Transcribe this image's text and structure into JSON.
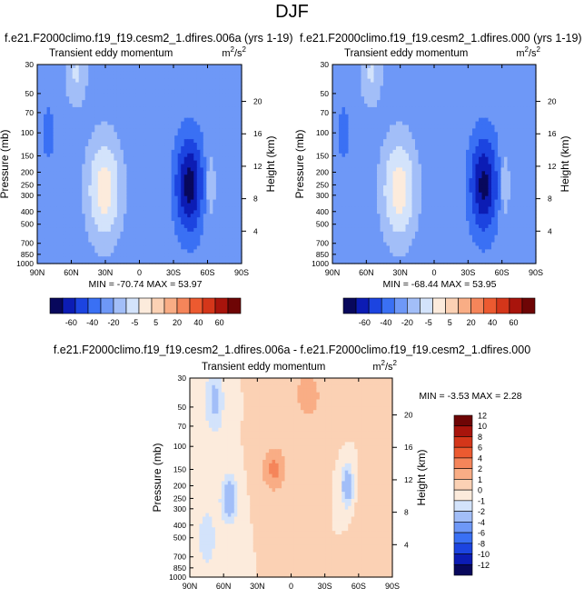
{
  "figure_title": "DJF",
  "chart_data": [
    {
      "type": "heatmap",
      "title": "f.e21.F2000climo.f19_f19.cesm2_1.dfires.006a (yrs 1-19)",
      "subtitle": "Transient eddy momentum",
      "units": "m²/s²",
      "ylabel": "Pressure (mb)",
      "right_ylabel": "Height (km)",
      "xlim": [
        90,
        -90
      ],
      "x_ticks": [
        "90N",
        "60N",
        "30N",
        "0",
        "30S",
        "60S",
        "90S"
      ],
      "y_ticks": [
        30,
        50,
        70,
        100,
        150,
        200,
        250,
        300,
        400,
        500,
        700,
        850,
        1000
      ],
      "right_ticks": [
        20,
        16,
        12,
        8,
        4
      ],
      "min_label": "MIN = -70.74",
      "max_label": "MAX =  53.97",
      "min": -70.74,
      "max": 53.97,
      "levels": [
        -60,
        -40,
        -20,
        -5,
        5,
        20,
        40,
        60
      ],
      "level_labels": [
        "-60",
        "-40",
        "-20",
        "-5",
        "5",
        "20",
        "40",
        "60"
      ],
      "colors": [
        "#08085c",
        "#0c1cb4",
        "#1c44e0",
        "#3a70f4",
        "#6e98f7",
        "#a2bef8",
        "#d3e3fb",
        "#fcebdc",
        "#fbd1b4",
        "#f9ad85",
        "#f5855a",
        "#ec5a30",
        "#d4361a",
        "#a8140c",
        "#6e0505"
      ],
      "features": [
        {
          "kind": "max",
          "lat": 31,
          "p": 270,
          "amp": 53.97,
          "wlat": 9,
          "wz": 3.8
        },
        {
          "kind": "min",
          "lat": -44,
          "p": 250,
          "amp": -70.74,
          "wlat": 7.5,
          "wz": 3.6
        },
        {
          "kind": "max",
          "lat": 56,
          "p": 35,
          "amp": 22,
          "wlat": 6,
          "wz": 2.5
        },
        {
          "kind": "max",
          "lat": -62,
          "p": 250,
          "amp": 14,
          "wlat": 3.5,
          "wz": 3
        },
        {
          "kind": "min",
          "lat": 80,
          "p": 100,
          "amp": -6,
          "wlat": 8,
          "wz": 5
        }
      ]
    },
    {
      "type": "heatmap",
      "title": "f.e21.F2000climo.f19_f19.cesm2_1.dfires.000 (yrs 1-19)",
      "subtitle": "Transient eddy momentum",
      "units": "m²/s²",
      "ylabel": "Pressure (mb)",
      "right_ylabel": "Height (km)",
      "xlim": [
        90,
        -90
      ],
      "x_ticks": [
        "90N",
        "60N",
        "30N",
        "0",
        "30S",
        "60S",
        "90S"
      ],
      "y_ticks": [
        30,
        50,
        70,
        100,
        150,
        200,
        250,
        300,
        400,
        500,
        700,
        850,
        1000
      ],
      "right_ticks": [
        20,
        16,
        12,
        8,
        4
      ],
      "min_label": "MIN = -68.44",
      "max_label": "MAX =  53.95",
      "min": -68.44,
      "max": 53.95,
      "levels": [
        -60,
        -40,
        -20,
        -5,
        5,
        20,
        40,
        60
      ],
      "level_labels": [
        "-60",
        "-40",
        "-20",
        "-5",
        "5",
        "20",
        "40",
        "60"
      ],
      "colors": [
        "#08085c",
        "#0c1cb4",
        "#1c44e0",
        "#3a70f4",
        "#6e98f7",
        "#a2bef8",
        "#d3e3fb",
        "#fcebdc",
        "#fbd1b4",
        "#f9ad85",
        "#f5855a",
        "#ec5a30",
        "#d4361a",
        "#a8140c",
        "#6e0505"
      ],
      "features": [
        {
          "kind": "max",
          "lat": 31,
          "p": 270,
          "amp": 53.95,
          "wlat": 9,
          "wz": 3.8
        },
        {
          "kind": "min",
          "lat": -44,
          "p": 250,
          "amp": -68.44,
          "wlat": 7.5,
          "wz": 3.6
        },
        {
          "kind": "max",
          "lat": 56,
          "p": 35,
          "amp": 22,
          "wlat": 6,
          "wz": 2.5
        },
        {
          "kind": "max",
          "lat": -62,
          "p": 250,
          "amp": 14,
          "wlat": 3.5,
          "wz": 3
        },
        {
          "kind": "min",
          "lat": 80,
          "p": 100,
          "amp": -6,
          "wlat": 8,
          "wz": 5
        }
      ]
    },
    {
      "type": "heatmap",
      "title": "f.e21.F2000climo.f19_f19.cesm2_1.dfires.006a - f.e21.F2000climo.f19_f19.cesm2_1.dfires.000",
      "subtitle": "Transient eddy momentum",
      "units": "m²/s²",
      "ylabel": "Pressure (mb)",
      "right_ylabel": "Height (km)",
      "xlim": [
        90,
        -90
      ],
      "x_ticks": [
        "90N",
        "60N",
        "30N",
        "0",
        "30S",
        "60S",
        "90S"
      ],
      "y_ticks": [
        30,
        50,
        70,
        100,
        150,
        200,
        250,
        300,
        400,
        500,
        700,
        850,
        1000
      ],
      "right_ticks": [
        20,
        16,
        12,
        8,
        4
      ],
      "min_label": "MIN = -3.53",
      "max_label": "MAX =  2.28",
      "min": -3.53,
      "max": 2.28,
      "levels": [
        -12,
        -10,
        -8,
        -6,
        -4,
        -2,
        -1,
        0,
        1,
        2,
        4,
        6,
        8,
        10,
        12
      ],
      "level_labels": [
        "-12",
        "-10",
        "-8",
        "-6",
        "-4",
        "-2",
        "-1",
        "0",
        "1",
        "2",
        "4",
        "6",
        "8",
        "10",
        "12"
      ],
      "colors": [
        "#08085c",
        "#0c1cb4",
        "#1c44e0",
        "#3a70f4",
        "#6e98f7",
        "#a2bef8",
        "#d3e3fb",
        "#fcebdc",
        "#fbd1b4",
        "#f9ad85",
        "#f5855a",
        "#ec5a30",
        "#d4361a",
        "#a8140c",
        "#6e0505"
      ],
      "features": [
        {
          "kind": "min",
          "lat": 68,
          "p": 45,
          "amp": -2.4,
          "wlat": 6,
          "wz": 3
        },
        {
          "kind": "min",
          "lat": 55,
          "p": 250,
          "amp": -3.53,
          "wlat": 5,
          "wz": 2
        },
        {
          "kind": "min",
          "lat": -50,
          "p": 200,
          "amp": -3.3,
          "wlat": 4,
          "wz": 1.8
        },
        {
          "kind": "min",
          "lat": 75,
          "p": 500,
          "amp": -1.6,
          "wlat": 7,
          "wz": 3
        },
        {
          "kind": "max",
          "lat": 15,
          "p": 150,
          "amp": 2.28,
          "wlat": 8,
          "wz": 2
        },
        {
          "kind": "max",
          "lat": -15,
          "p": 40,
          "amp": 1.2,
          "wlat": 15,
          "wz": 4
        },
        {
          "kind": "max",
          "lat": -70,
          "p": 400,
          "amp": 1.0,
          "wlat": 8,
          "wz": 4
        }
      ]
    }
  ]
}
